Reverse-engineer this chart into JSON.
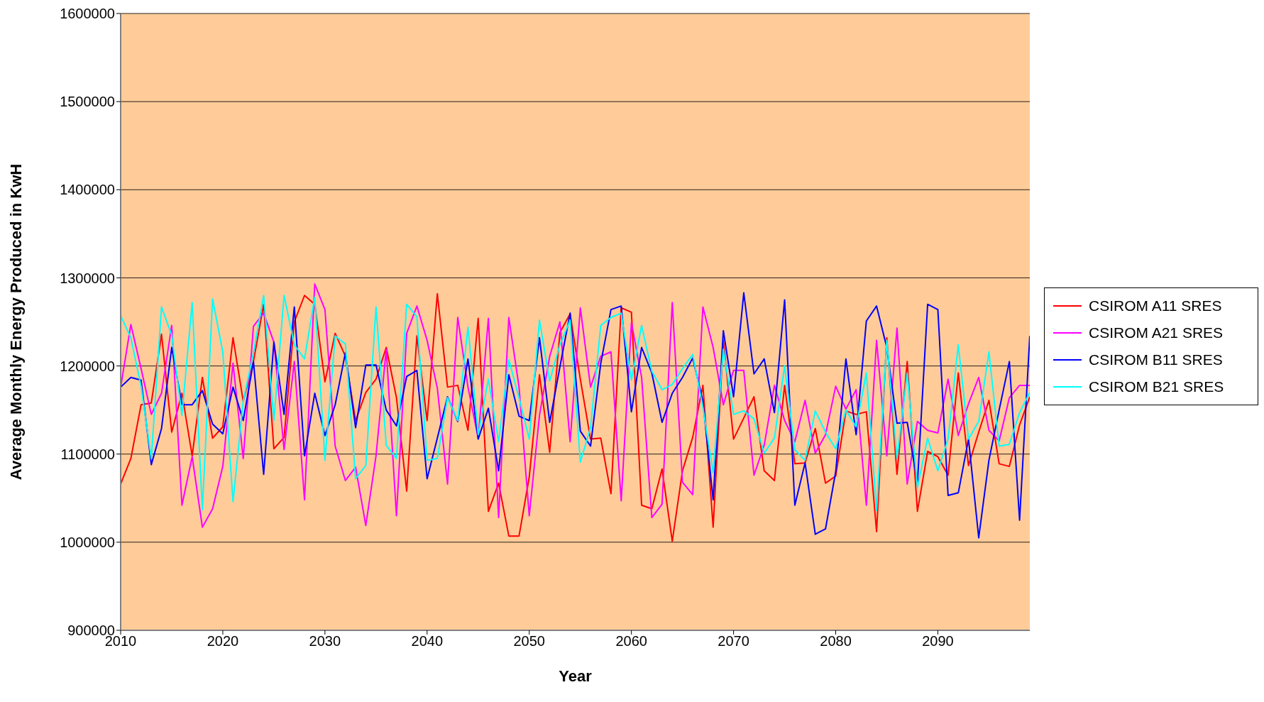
{
  "chart_data": {
    "type": "line",
    "xlabel": "Year",
    "ylabel": "Average Monthly Energy Produced in KwH",
    "x": [
      2010,
      2011,
      2012,
      2013,
      2014,
      2015,
      2016,
      2017,
      2018,
      2019,
      2020,
      2021,
      2022,
      2023,
      2024,
      2025,
      2026,
      2027,
      2028,
      2029,
      2030,
      2031,
      2032,
      2033,
      2034,
      2035,
      2036,
      2037,
      2038,
      2039,
      2040,
      2041,
      2042,
      2043,
      2044,
      2045,
      2046,
      2047,
      2048,
      2049,
      2050,
      2051,
      2052,
      2053,
      2054,
      2055,
      2056,
      2057,
      2058,
      2059,
      2060,
      2061,
      2062,
      2063,
      2064,
      2065,
      2066,
      2067,
      2068,
      2069,
      2070,
      2071,
      2072,
      2073,
      2074,
      2075,
      2076,
      2077,
      2078,
      2079,
      2080,
      2081,
      2082,
      2083,
      2084,
      2085,
      2086,
      2087,
      2088,
      2089,
      2090,
      2091,
      2092,
      2093,
      2094,
      2095,
      2096,
      2097,
      2098,
      2099
    ],
    "series": [
      {
        "name": "CSIROM A11 SRES",
        "color": "#ff0000",
        "values": [
          1066000,
          1095000,
          1156000,
          1158000,
          1236000,
          1125000,
          1169000,
          1098000,
          1187000,
          1118000,
          1131000,
          1232000,
          1160000,
          1205000,
          1270000,
          1106000,
          1119000,
          1250000,
          1280000,
          1270000,
          1182000,
          1237000,
          1211000,
          1138000,
          1170000,
          1185000,
          1221000,
          1164000,
          1058000,
          1234000,
          1138000,
          1282000,
          1176000,
          1178000,
          1127000,
          1254000,
          1035000,
          1067000,
          1007000,
          1007000,
          1074000,
          1190000,
          1102000,
          1238000,
          1259000,
          1185000,
          1117000,
          1118000,
          1055000,
          1266000,
          1261000,
          1042000,
          1038000,
          1083000,
          1001000,
          1081000,
          1119000,
          1178000,
          1017000,
          1229000,
          1117000,
          1141000,
          1165000,
          1081000,
          1070000,
          1178000,
          1089000,
          1090000,
          1129000,
          1067000,
          1075000,
          1149000,
          1145000,
          1148000,
          1012000,
          1232000,
          1077000,
          1205000,
          1035000,
          1103000,
          1097000,
          1076000,
          1192000,
          1087000,
          1125000,
          1161000,
          1089000,
          1086000,
          1133000,
          1165000
        ]
      },
      {
        "name": "CSIROM A21 SRES",
        "color": "#ff00ff",
        "values": [
          1176000,
          1247000,
          1197000,
          1145000,
          1169000,
          1246000,
          1042000,
          1097000,
          1017000,
          1038000,
          1086000,
          1203000,
          1095000,
          1245000,
          1260000,
          1227000,
          1105000,
          1205000,
          1048000,
          1293000,
          1264000,
          1109000,
          1070000,
          1085000,
          1019000,
          1098000,
          1219000,
          1030000,
          1237000,
          1268000,
          1229000,
          1175000,
          1066000,
          1255000,
          1176000,
          1118000,
          1254000,
          1028000,
          1255000,
          1176000,
          1030000,
          1144000,
          1211000,
          1250000,
          1114000,
          1266000,
          1176000,
          1211000,
          1216000,
          1047000,
          1249000,
          1187000,
          1028000,
          1043000,
          1272000,
          1068000,
          1054000,
          1267000,
          1221000,
          1156000,
          1195000,
          1195000,
          1076000,
          1110000,
          1178000,
          1138000,
          1114000,
          1161000,
          1101000,
          1122000,
          1177000,
          1151000,
          1173000,
          1042000,
          1229000,
          1098000,
          1243000,
          1066000,
          1137000,
          1127000,
          1124000,
          1185000,
          1121000,
          1157000,
          1187000,
          1127000,
          1115000,
          1164000,
          1178000,
          1178000
        ]
      },
      {
        "name": "CSIROM B11 SRES",
        "color": "#0000ff",
        "values": [
          1176000,
          1187000,
          1184000,
          1088000,
          1129000,
          1221000,
          1156000,
          1156000,
          1172000,
          1134000,
          1123000,
          1176000,
          1138000,
          1205000,
          1077000,
          1227000,
          1145000,
          1267000,
          1098000,
          1169000,
          1121000,
          1156000,
          1215000,
          1130000,
          1201000,
          1201000,
          1150000,
          1132000,
          1188000,
          1195000,
          1072000,
          1118000,
          1165000,
          1137000,
          1208000,
          1117000,
          1152000,
          1081000,
          1190000,
          1143000,
          1138000,
          1232000,
          1136000,
          1199000,
          1260000,
          1126000,
          1109000,
          1203000,
          1264000,
          1268000,
          1148000,
          1221000,
          1192000,
          1136000,
          1169000,
          1187000,
          1209000,
          1160000,
          1048000,
          1240000,
          1165000,
          1283000,
          1191000,
          1208000,
          1147000,
          1275000,
          1042000,
          1090000,
          1009000,
          1015000,
          1080000,
          1208000,
          1122000,
          1251000,
          1268000,
          1221000,
          1135000,
          1136000,
          1067000,
          1270000,
          1264000,
          1053000,
          1056000,
          1117000,
          1005000,
          1093000,
          1150000,
          1205000,
          1025000,
          1234000
        ]
      },
      {
        "name": "CSIROM B21 SRES",
        "color": "#00ffff",
        "values": [
          1257000,
          1232000,
          1177000,
          1095000,
          1267000,
          1235000,
          1144000,
          1272000,
          1037000,
          1276000,
          1216000,
          1046000,
          1160000,
          1215000,
          1280000,
          1138000,
          1280000,
          1224000,
          1208000,
          1278000,
          1093000,
          1234000,
          1225000,
          1072000,
          1087000,
          1267000,
          1110000,
          1095000,
          1270000,
          1256000,
          1093000,
          1095000,
          1164000,
          1138000,
          1244000,
          1122000,
          1185000,
          1114000,
          1207000,
          1164000,
          1117000,
          1252000,
          1183000,
          1224000,
          1252000,
          1091000,
          1130000,
          1246000,
          1255000,
          1260000,
          1184000,
          1246000,
          1194000,
          1173000,
          1179000,
          1197000,
          1213000,
          1153000,
          1079000,
          1219000,
          1145000,
          1149000,
          1140000,
          1101000,
          1118000,
          1200000,
          1105000,
          1093000,
          1149000,
          1125000,
          1106000,
          1150000,
          1131000,
          1192000,
          1036000,
          1229000,
          1095000,
          1192000,
          1062000,
          1118000,
          1081000,
          1117000,
          1224000,
          1117000,
          1137000,
          1216000,
          1109000,
          1111000,
          1147000,
          1170000
        ]
      }
    ],
    "xlim": [
      2010,
      2099
    ],
    "xticks": [
      2010,
      2020,
      2030,
      2040,
      2050,
      2060,
      2070,
      2080,
      2090
    ],
    "ylim": [
      900000,
      1600000
    ],
    "yticks": [
      900000,
      1000000,
      1100000,
      1200000,
      1300000,
      1400000,
      1500000,
      1600000
    ],
    "grid": "y",
    "legend": "right",
    "marker": "none",
    "line_style": "solid"
  }
}
